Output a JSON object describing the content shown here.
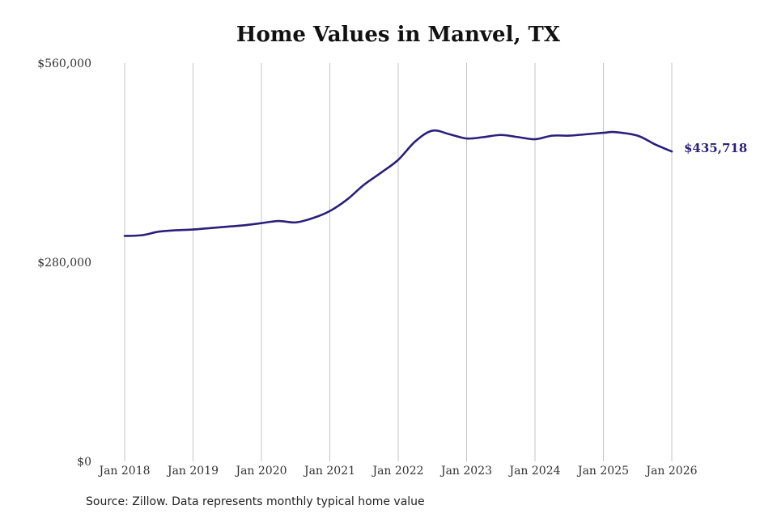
{
  "chart_data": {
    "type": "line",
    "title": "Home Values in Manvel, TX",
    "xlabel": "",
    "ylabel": "",
    "ylim": [
      0,
      560000
    ],
    "y_ticks": [
      {
        "value": 0,
        "label": "$0"
      },
      {
        "value": 280000,
        "label": "$280,000"
      },
      {
        "value": 560000,
        "label": "$560,000"
      }
    ],
    "x_ticks": [
      {
        "value": "2018-01",
        "label": "Jan 2018"
      },
      {
        "value": "2019-01",
        "label": "Jan 2019"
      },
      {
        "value": "2020-01",
        "label": "Jan 2020"
      },
      {
        "value": "2021-01",
        "label": "Jan 2021"
      },
      {
        "value": "2022-01",
        "label": "Jan 2022"
      },
      {
        "value": "2023-01",
        "label": "Jan 2023"
      },
      {
        "value": "2024-01",
        "label": "Jan 2024"
      },
      {
        "value": "2025-01",
        "label": "Jan 2025"
      },
      {
        "value": "2026-01",
        "label": "Jan 2026"
      }
    ],
    "grid": "vertical",
    "line_color": "#2a1f7a",
    "series": [
      {
        "x": [
          "2018-01",
          "2018-04",
          "2018-07",
          "2018-10",
          "2019-01",
          "2019-04",
          "2019-07",
          "2019-10",
          "2020-01",
          "2020-04",
          "2020-07",
          "2020-10",
          "2021-01",
          "2021-04",
          "2021-07",
          "2021-10",
          "2022-01",
          "2022-04",
          "2022-07",
          "2022-10",
          "2023-01",
          "2023-04",
          "2023-07",
          "2023-10",
          "2024-01",
          "2024-04",
          "2024-07",
          "2024-10",
          "2025-01",
          "2025-03",
          "2025-07",
          "2025-10",
          "2026-01"
        ],
        "values": [
          317000,
          318000,
          323000,
          325000,
          326000,
          328000,
          330000,
          332000,
          335000,
          338000,
          336000,
          342000,
          352000,
          368000,
          389000,
          406000,
          424000,
          450000,
          465000,
          460000,
          454000,
          456000,
          459000,
          456000,
          453000,
          458000,
          458000,
          460000,
          462000,
          463000,
          458000,
          446000,
          435718
        ]
      }
    ],
    "end_label": "$435,718"
  },
  "footer": {
    "source": "Source: Zillow. Data represents monthly typical home value"
  }
}
